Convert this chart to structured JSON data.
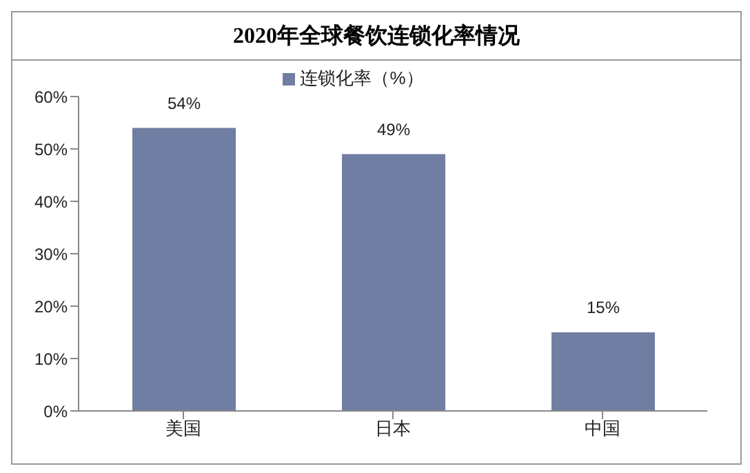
{
  "chart_data": {
    "type": "bar",
    "title": "2020年全球餐饮连锁化率情况",
    "categories": [
      "美国",
      "日本",
      "中国"
    ],
    "series": [
      {
        "name": "连锁化率（%）",
        "color": "#717ea3",
        "values": [
          54,
          49,
          15
        ],
        "value_labels": [
          "54%",
          "49%",
          "15%"
        ]
      }
    ],
    "ylim": [
      0,
      60
    ],
    "yticks": [
      {
        "value": 0,
        "label": "0%"
      },
      {
        "value": 10,
        "label": "10%"
      },
      {
        "value": 20,
        "label": "20%"
      },
      {
        "value": 30,
        "label": "30%"
      },
      {
        "value": 40,
        "label": "40%"
      },
      {
        "value": 50,
        "label": "50%"
      },
      {
        "value": 60,
        "label": "60%"
      }
    ],
    "grid": false,
    "legend": "top"
  }
}
